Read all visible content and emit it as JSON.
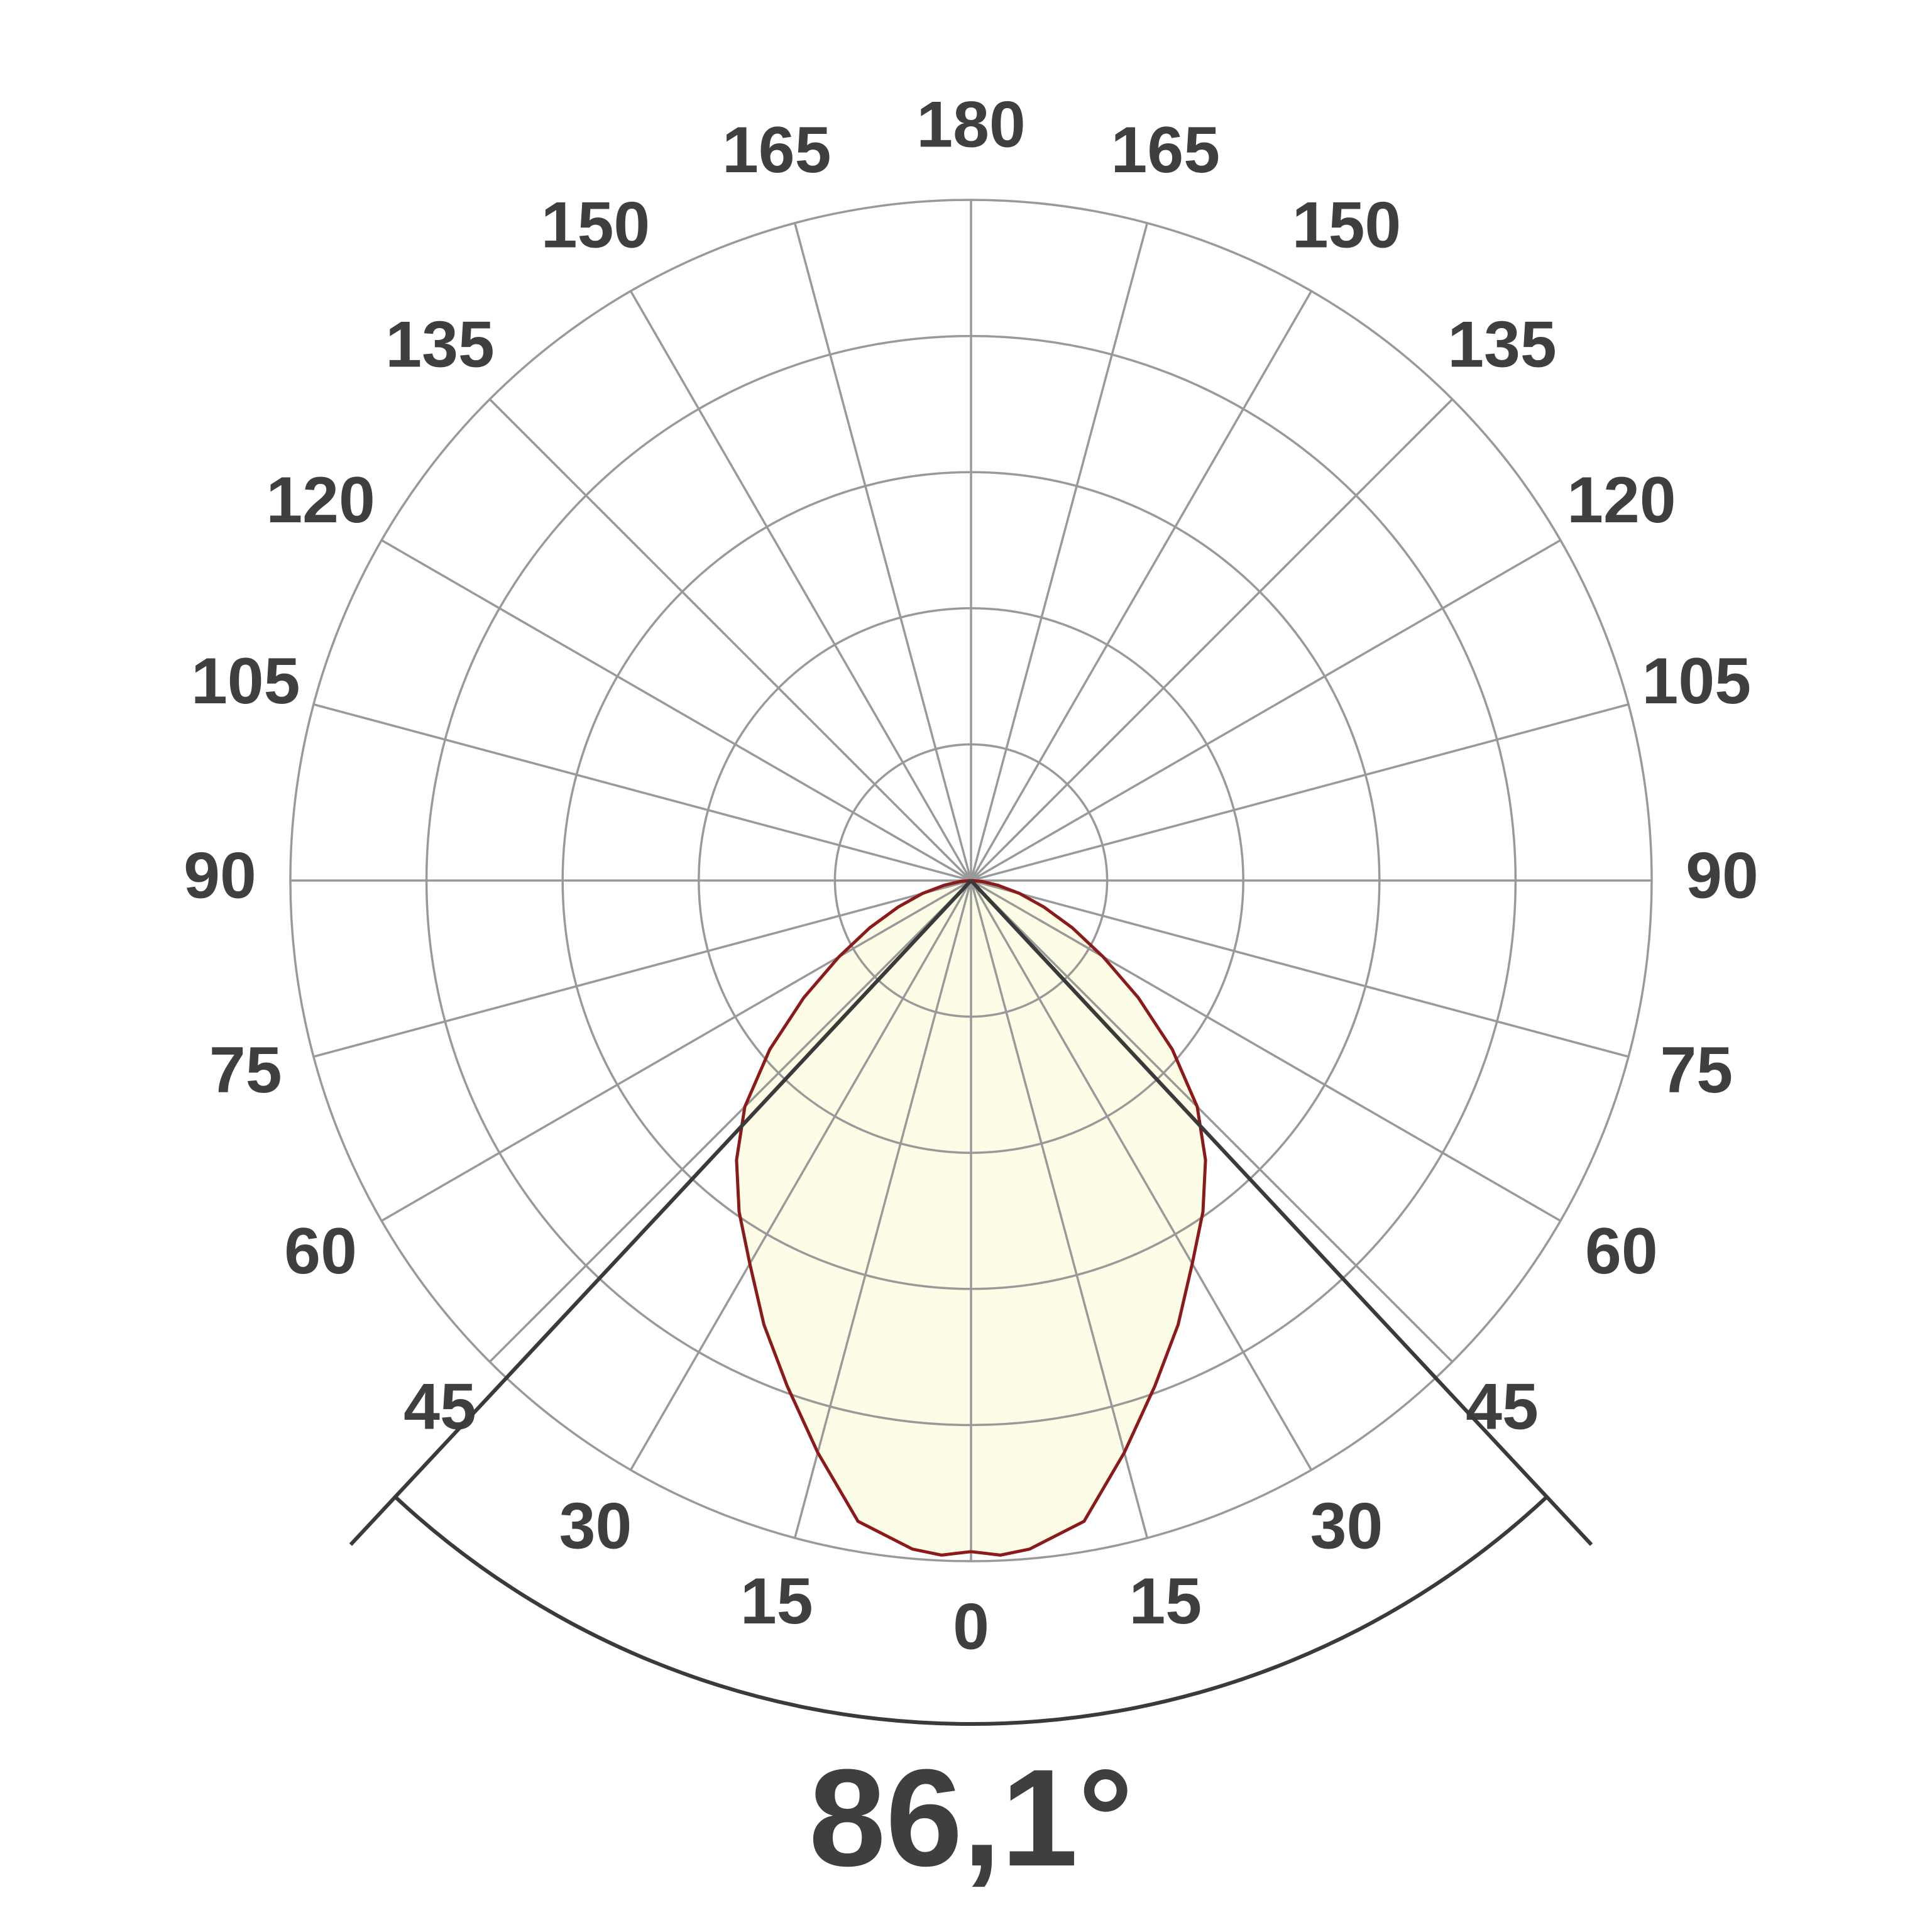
{
  "chart_data": {
    "type": "polar",
    "angle_ticks": [
      0,
      15,
      30,
      45,
      60,
      75,
      90,
      105,
      120,
      135,
      150,
      165,
      180
    ],
    "rlim": [
      0,
      5
    ],
    "rticks": [
      1,
      2,
      3,
      4,
      5
    ],
    "x": [
      0,
      2.5,
      5,
      10,
      15,
      20,
      25,
      30,
      35,
      40,
      45,
      50,
      55,
      60,
      65,
      70,
      75,
      80,
      85,
      90
    ],
    "values": [
      4.93,
      4.96,
      4.93,
      4.78,
      4.35,
      3.95,
      3.6,
      3.25,
      2.97,
      2.68,
      2.35,
      1.93,
      1.5,
      1.12,
      0.82,
      0.57,
      0.37,
      0.2,
      0.08,
      0
    ],
    "color": "#8b1a1a",
    "fill": "#fdfce6",
    "grid_color": "#999999",
    "beam_angle": {
      "value": 86.1,
      "label": "86,1°"
    },
    "beam_color": "#3a3a3a"
  }
}
